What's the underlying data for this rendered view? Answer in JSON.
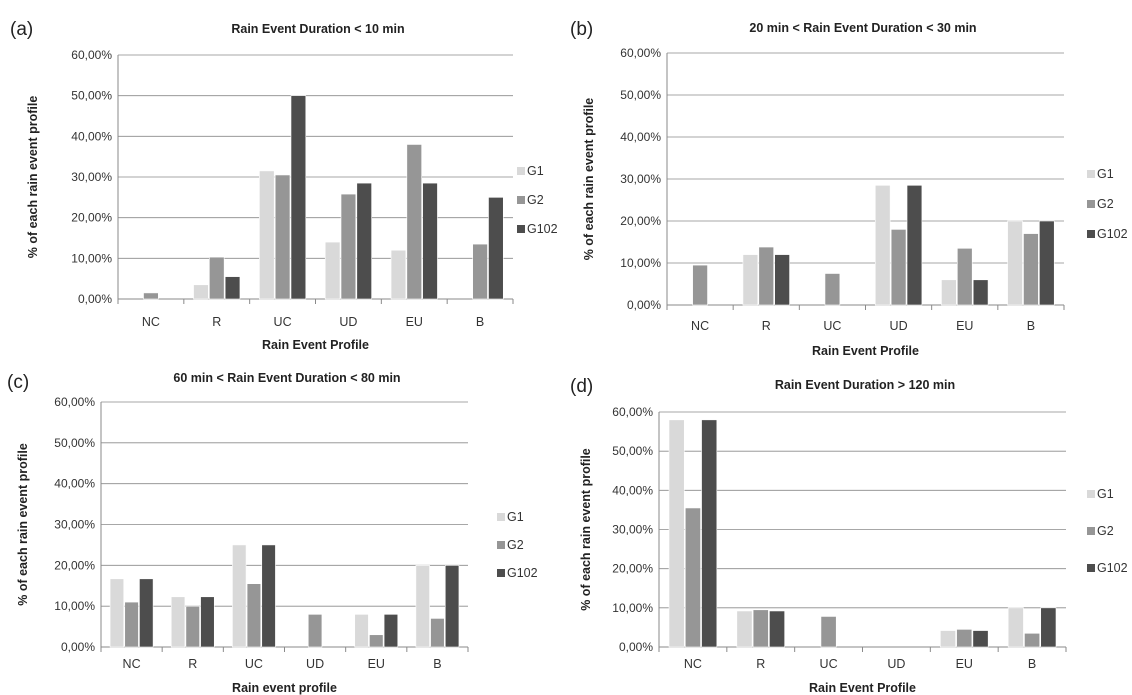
{
  "colors": {
    "G1": "#d9d9d9",
    "G2": "#969696",
    "G102": "#4d4d4d"
  },
  "chart_data": [
    {
      "type": "bar",
      "panel": "(a)",
      "title": "Rain Event Duration < 10 min",
      "xlabel": "Rain Event Profile",
      "ylabel": "% of each rain event profile",
      "categories": [
        "NC",
        "R",
        "UC",
        "UD",
        "EU",
        "B"
      ],
      "yticks": [
        "0,00%",
        "10,00%",
        "20,00%",
        "30,00%",
        "40,00%",
        "50,00%",
        "60,00%"
      ],
      "ylim": [
        0,
        60
      ],
      "grid": true,
      "legend_position": "right",
      "series": [
        {
          "name": "G1",
          "values": [
            0,
            3.5,
            31.5,
            14,
            12,
            0
          ]
        },
        {
          "name": "G2",
          "values": [
            1.5,
            10.3,
            30.5,
            25.8,
            38,
            13.5
          ]
        },
        {
          "name": "G102",
          "values": [
            0,
            5.5,
            50,
            28.5,
            28.5,
            25
          ]
        }
      ]
    },
    {
      "type": "bar",
      "panel": "(b)",
      "title": "20 min < Rain Event Duration < 30 min",
      "xlabel": "Rain Event Profile",
      "ylabel": "% of each rain event profile",
      "categories": [
        "NC",
        "R",
        "UC",
        "UD",
        "EU",
        "B"
      ],
      "yticks": [
        "0,00%",
        "10,00%",
        "20,00%",
        "30,00%",
        "40,00%",
        "50,00%",
        "60,00%"
      ],
      "ylim": [
        0,
        60
      ],
      "grid": true,
      "legend_position": "right",
      "series": [
        {
          "name": "G1",
          "values": [
            0,
            12,
            0,
            28.5,
            6,
            20
          ]
        },
        {
          "name": "G2",
          "values": [
            9.5,
            13.8,
            7.5,
            18,
            13.5,
            17
          ]
        },
        {
          "name": "G102",
          "values": [
            0,
            12,
            0,
            28.5,
            6,
            20
          ]
        }
      ]
    },
    {
      "type": "bar",
      "panel": "(c)",
      "title": "60 min < Rain Event Duration < 80 min",
      "xlabel": "Rain event profile",
      "ylabel": "% of each rain event profile",
      "categories": [
        "NC",
        "R",
        "UC",
        "UD",
        "EU",
        "B"
      ],
      "yticks": [
        "0,00%",
        "10,00%",
        "20,00%",
        "30,00%",
        "40,00%",
        "50,00%",
        "60,00%"
      ],
      "ylim": [
        0,
        60
      ],
      "grid": true,
      "legend_position": "right",
      "series": [
        {
          "name": "G1",
          "values": [
            16.7,
            12.3,
            25,
            0,
            8,
            20
          ]
        },
        {
          "name": "G2",
          "values": [
            11,
            10,
            15.5,
            8,
            3,
            7
          ]
        },
        {
          "name": "G102",
          "values": [
            16.7,
            12.3,
            25,
            0,
            8,
            20
          ]
        }
      ]
    },
    {
      "type": "bar",
      "panel": "(d)",
      "title": "Rain Event Duration > 120 min",
      "xlabel": "Rain Event Profile",
      "ylabel": "% of each rain event profile",
      "categories": [
        "NC",
        "R",
        "UC",
        "UD",
        "EU",
        "B"
      ],
      "yticks": [
        "0,00%",
        "10,00%",
        "20,00%",
        "30,00%",
        "40,00%",
        "50,00%",
        "60,00%"
      ],
      "ylim": [
        0,
        60
      ],
      "grid": true,
      "legend_position": "right",
      "series": [
        {
          "name": "G1",
          "values": [
            58,
            9.2,
            0,
            0,
            4.2,
            10
          ]
        },
        {
          "name": "G2",
          "values": [
            35.5,
            9.5,
            7.8,
            0,
            4.5,
            3.5
          ]
        },
        {
          "name": "G102",
          "values": [
            58,
            9.2,
            0,
            0,
            4.2,
            10
          ]
        }
      ]
    }
  ]
}
